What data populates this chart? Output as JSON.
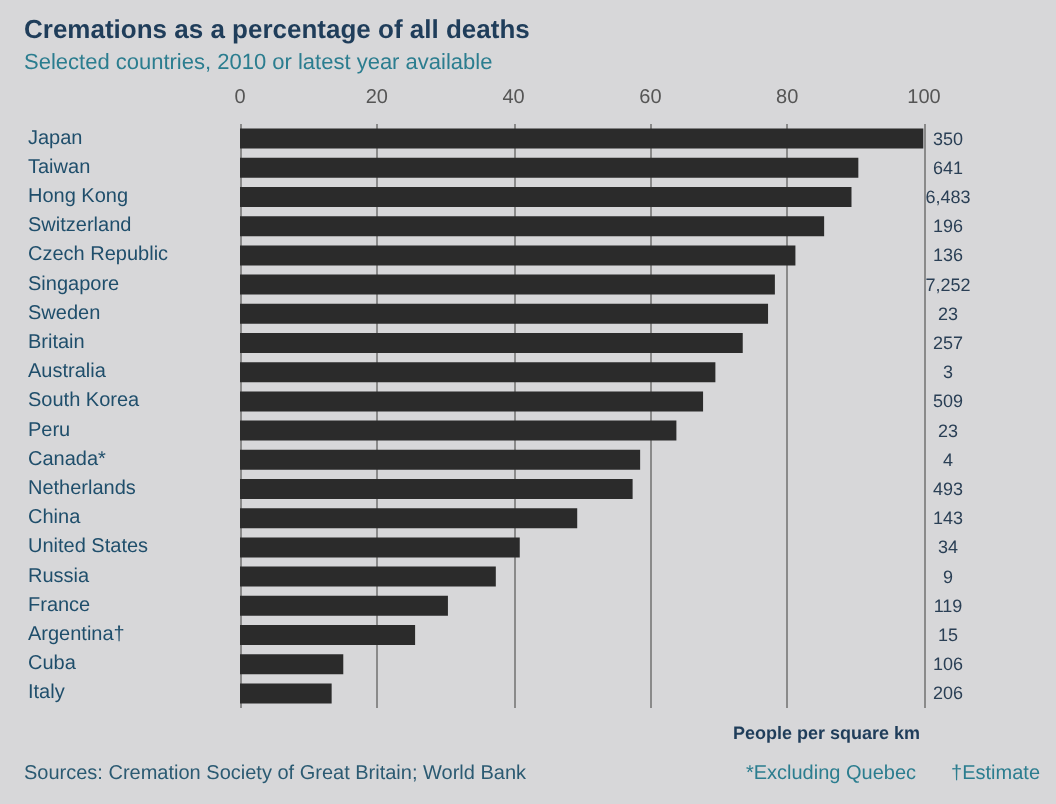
{
  "chart_data": {
    "type": "bar",
    "orientation": "horizontal",
    "title": "Cremations as a percentage of all deaths",
    "subtitle": "Selected countries, 2010 or latest year available",
    "categories": [
      "Japan",
      "Taiwan",
      "Hong Kong",
      "Switzerland",
      "Czech Republic",
      "Singapore",
      "Sweden",
      "Britain",
      "Australia",
      "South Korea",
      "Peru",
      "Canada*",
      "Netherlands",
      "China",
      "United States",
      "Russia",
      "France",
      "Argentina†",
      "Cuba",
      "Italy"
    ],
    "values": [
      99.9,
      90.4,
      89.4,
      85.4,
      81.2,
      78.2,
      77.2,
      73.5,
      69.5,
      67.7,
      63.8,
      58.5,
      57.4,
      49.3,
      40.9,
      37.4,
      30.4,
      25.6,
      15.1,
      13.4
    ],
    "color": "#2b2b2b",
    "y2_categories": [
      "350",
      "641",
      "6,483",
      "196",
      "136",
      "7,252",
      "23",
      "257",
      "3",
      "509",
      "23",
      "4",
      "493",
      "143",
      "34",
      "9",
      "119",
      "15",
      "106",
      "206"
    ],
    "xlim": [
      0,
      100
    ],
    "xticks": [
      0,
      20,
      40,
      60,
      80,
      100
    ],
    "grid": "x",
    "annotations": [
      "Sources: Cremation Society of Great Britain; World Bank",
      "*Excluding Quebec",
      "†Estimate",
      "People per square km"
    ]
  }
}
